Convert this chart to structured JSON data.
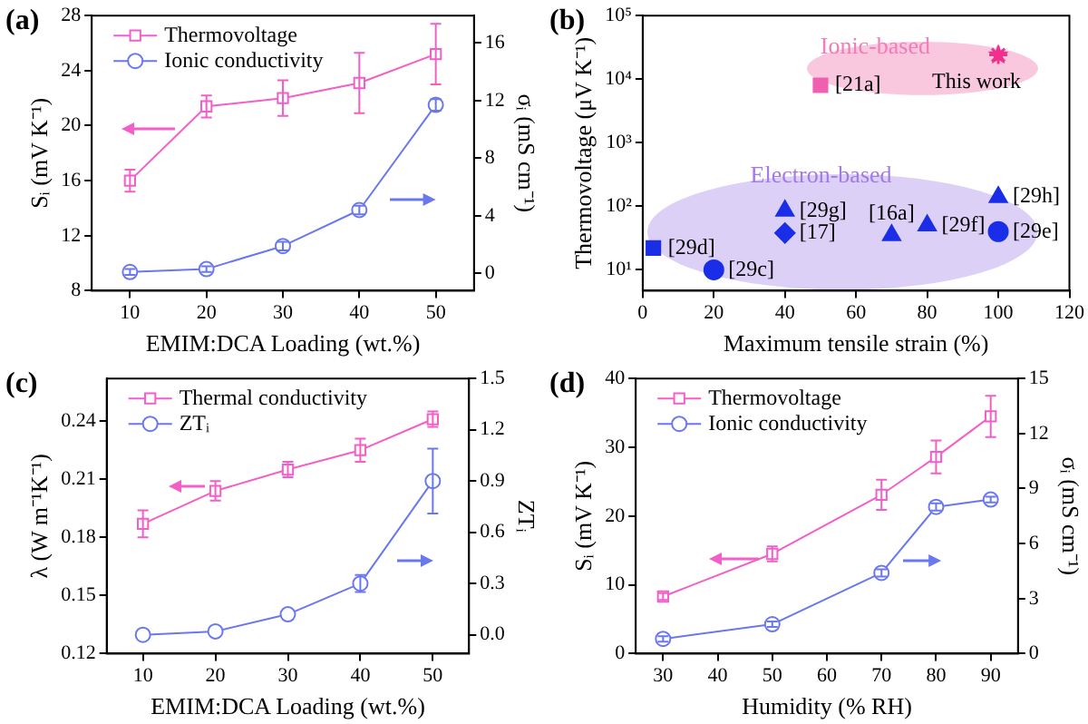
{
  "chart_data": [
    {
      "type": "line",
      "title": "(a)",
      "xlabel": "EMIM:DCA Loading (wt.%)",
      "ylabel": "Sᵢ (mV K⁻¹)",
      "y2label": "σᵢ (mS cm⁻¹)",
      "x": [
        10,
        20,
        30,
        40,
        50
      ],
      "xlim": [
        5,
        55
      ],
      "xticks": [
        10,
        20,
        30,
        40,
        50
      ],
      "ylim": [
        8,
        28
      ],
      "yticks": [
        8,
        12,
        16,
        20,
        24,
        28
      ],
      "y2lim": [
        -1.2,
        17.9
      ],
      "y2ticks": [
        0,
        4,
        8,
        12,
        16
      ],
      "legend": "top left",
      "series": [
        {
          "name": "Thermovoltage",
          "color": "#f25fc8",
          "marker": "square",
          "values": [
            16.0,
            21.4,
            22.0,
            23.1,
            25.2
          ],
          "errors": [
            0.8,
            0.8,
            1.3,
            2.2,
            2.2
          ]
        },
        {
          "name": "Ionic conductivity",
          "color": "#6a78ee",
          "marker": "circle",
          "axis": "y2",
          "values": [
            0.1,
            0.3,
            1.9,
            4.4,
            11.7
          ],
          "errors": [
            0.2,
            0.2,
            0.3,
            0.3,
            0.4
          ]
        }
      ]
    },
    {
      "type": "scatter",
      "title": "(b)",
      "xlabel": "Maximum tensile strain (%)",
      "ylabel": "Thermovoltage (μV K⁻¹)",
      "log": "y",
      "xlim": [
        0,
        120
      ],
      "xticks": [
        0,
        20,
        40,
        60,
        80,
        100,
        120
      ],
      "ylim": [
        4.7,
        100000
      ],
      "yticks": [
        {
          "value": 10,
          "label": "10¹"
        },
        {
          "value": 100,
          "label": "10²"
        },
        {
          "value": 1000,
          "label": "10³"
        },
        {
          "value": 10000,
          "label": "10⁴"
        },
        {
          "value": 100000,
          "label": "10⁵"
        }
      ],
      "annotations": [
        "Ionic-based",
        "Electron-based"
      ],
      "series": [
        {
          "name": "[21a]",
          "color": "#f060b0",
          "marker": "square",
          "x": [
            50
          ],
          "values": [
            8000
          ]
        },
        {
          "name": "This work",
          "color": "#f0308c",
          "marker": "star",
          "x": [
            100
          ],
          "values": [
            24000
          ]
        },
        {
          "name": "[29d]",
          "color": "#1a2ee8",
          "marker": "square",
          "x": [
            3
          ],
          "values": [
            22
          ]
        },
        {
          "name": "[29c]",
          "color": "#1a2ee8",
          "marker": "circle",
          "x": [
            20
          ],
          "values": [
            10
          ]
        },
        {
          "name": "[17]",
          "color": "#1a2ee8",
          "marker": "diamond",
          "x": [
            40
          ],
          "values": [
            38
          ]
        },
        {
          "name": "[29g]",
          "color": "#1a2ee8",
          "marker": "triangle",
          "x": [
            40
          ],
          "values": [
            85
          ]
        },
        {
          "name": "[16a]",
          "color": "#1a2ee8",
          "marker": "triangle",
          "x": [
            70
          ],
          "values": [
            35
          ]
        },
        {
          "name": "[29f]",
          "color": "#1a2ee8",
          "marker": "triangle",
          "x": [
            80
          ],
          "values": [
            50
          ]
        },
        {
          "name": "[29h]",
          "color": "#1a2ee8",
          "marker": "triangle",
          "x": [
            100
          ],
          "values": [
            140
          ]
        },
        {
          "name": "[29e]",
          "color": "#1a2ee8",
          "marker": "circle",
          "x": [
            100
          ],
          "values": [
            40
          ]
        }
      ]
    },
    {
      "type": "line",
      "title": "(c)",
      "xlabel": "EMIM:DCA Loading (wt.%)",
      "ylabel": "λ (W m⁻¹K⁻¹)",
      "y2label": "ZTᵢ",
      "x": [
        10,
        20,
        30,
        40,
        50
      ],
      "xlim": [
        5,
        55
      ],
      "xticks": [
        10,
        20,
        30,
        40,
        50
      ],
      "ylim": [
        0.12,
        0.262
      ],
      "yticks": [
        0.12,
        0.15,
        0.18,
        0.21,
        0.24
      ],
      "y2lim": [
        -0.11,
        1.5
      ],
      "y2ticks": [
        {
          "value": 0,
          "label": "0.0"
        },
        {
          "value": 0.3,
          "label": "0.3"
        },
        {
          "value": 0.6,
          "label": "0.6"
        },
        {
          "value": 0.9,
          "label": "0.9"
        },
        {
          "value": 1.2,
          "label": "1.2"
        },
        {
          "value": 1.5,
          "label": "1.5"
        }
      ],
      "legend": "top left",
      "series": [
        {
          "name": "Thermal conductivity",
          "color": "#f25fc8",
          "marker": "square",
          "values": [
            0.187,
            0.204,
            0.215,
            0.225,
            0.241
          ],
          "errors": [
            0.007,
            0.005,
            0.004,
            0.006,
            0.004
          ]
        },
        {
          "name": "ZTᵢ",
          "color": "#6a78ee",
          "marker": "circle",
          "axis": "y2",
          "values": [
            0.0,
            0.02,
            0.12,
            0.3,
            0.9
          ],
          "errors": [
            null,
            null,
            null,
            0.05,
            0.19
          ]
        }
      ]
    },
    {
      "type": "line",
      "title": "(d)",
      "xlabel": "Humidity (% RH)",
      "ylabel": "Sᵢ (mV K⁻¹)",
      "y2label": "σᵢ (mS cm⁻¹)",
      "x": [
        30,
        50,
        70,
        80,
        90
      ],
      "xlim": [
        25,
        95
      ],
      "xticks": [
        30,
        40,
        50,
        60,
        70,
        80,
        90
      ],
      "ylim": [
        0,
        40
      ],
      "yticks": [
        0,
        10,
        20,
        30,
        40
      ],
      "y2lim": [
        0,
        15
      ],
      "y2ticks": [
        0,
        3,
        6,
        9,
        12,
        15
      ],
      "legend": "top left",
      "series": [
        {
          "name": "Thermovoltage",
          "color": "#f25fc8",
          "marker": "square",
          "values": [
            8.3,
            14.5,
            23.1,
            28.6,
            34.5
          ],
          "errors": [
            0.5,
            1.1,
            2.2,
            2.4,
            3.0
          ]
        },
        {
          "name": "Ionic conductivity",
          "color": "#6a78ee",
          "marker": "circle",
          "axis": "y2",
          "values": [
            0.8,
            1.6,
            4.4,
            8.0,
            8.4
          ],
          "errors": [
            0.15,
            0.15,
            0.2,
            0.2,
            0.15
          ]
        }
      ]
    }
  ]
}
